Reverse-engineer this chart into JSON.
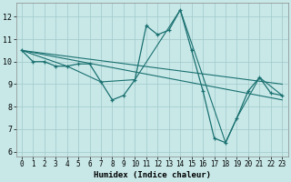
{
  "xlabel": "Humidex (Indice chaleur)",
  "bg_color": "#c8e8e8",
  "line_color": "#1a7070",
  "grid_color": "#a0c8c8",
  "xlim": [
    -0.5,
    23.5
  ],
  "ylim": [
    5.8,
    12.6
  ],
  "yticks": [
    6,
    7,
    8,
    9,
    10,
    11,
    12
  ],
  "xticks": [
    0,
    1,
    2,
    3,
    4,
    5,
    6,
    7,
    8,
    9,
    10,
    11,
    12,
    13,
    14,
    15,
    16,
    17,
    18,
    19,
    20,
    21,
    22,
    23
  ],
  "main_x": [
    0,
    1,
    2,
    3,
    4,
    5,
    6,
    7,
    8,
    9,
    10,
    11,
    12,
    13,
    14,
    15,
    16,
    17,
    18,
    19,
    20,
    21,
    22,
    23
  ],
  "main_y": [
    10.5,
    10.0,
    10.0,
    9.8,
    9.8,
    9.9,
    9.9,
    9.1,
    8.3,
    8.5,
    9.2,
    11.6,
    11.2,
    11.4,
    12.3,
    10.5,
    8.7,
    6.6,
    6.4,
    7.5,
    8.7,
    9.3,
    8.6,
    8.5
  ],
  "trend1_x": [
    0,
    23
  ],
  "trend1_y": [
    10.5,
    9.0
  ],
  "trend2_x": [
    0,
    23
  ],
  "trend2_y": [
    10.5,
    8.3
  ],
  "sub_x": [
    0,
    4,
    7,
    10,
    14,
    18,
    19,
    21,
    23
  ],
  "sub_y": [
    10.5,
    9.8,
    9.1,
    9.2,
    12.3,
    6.4,
    7.5,
    9.3,
    8.5
  ]
}
